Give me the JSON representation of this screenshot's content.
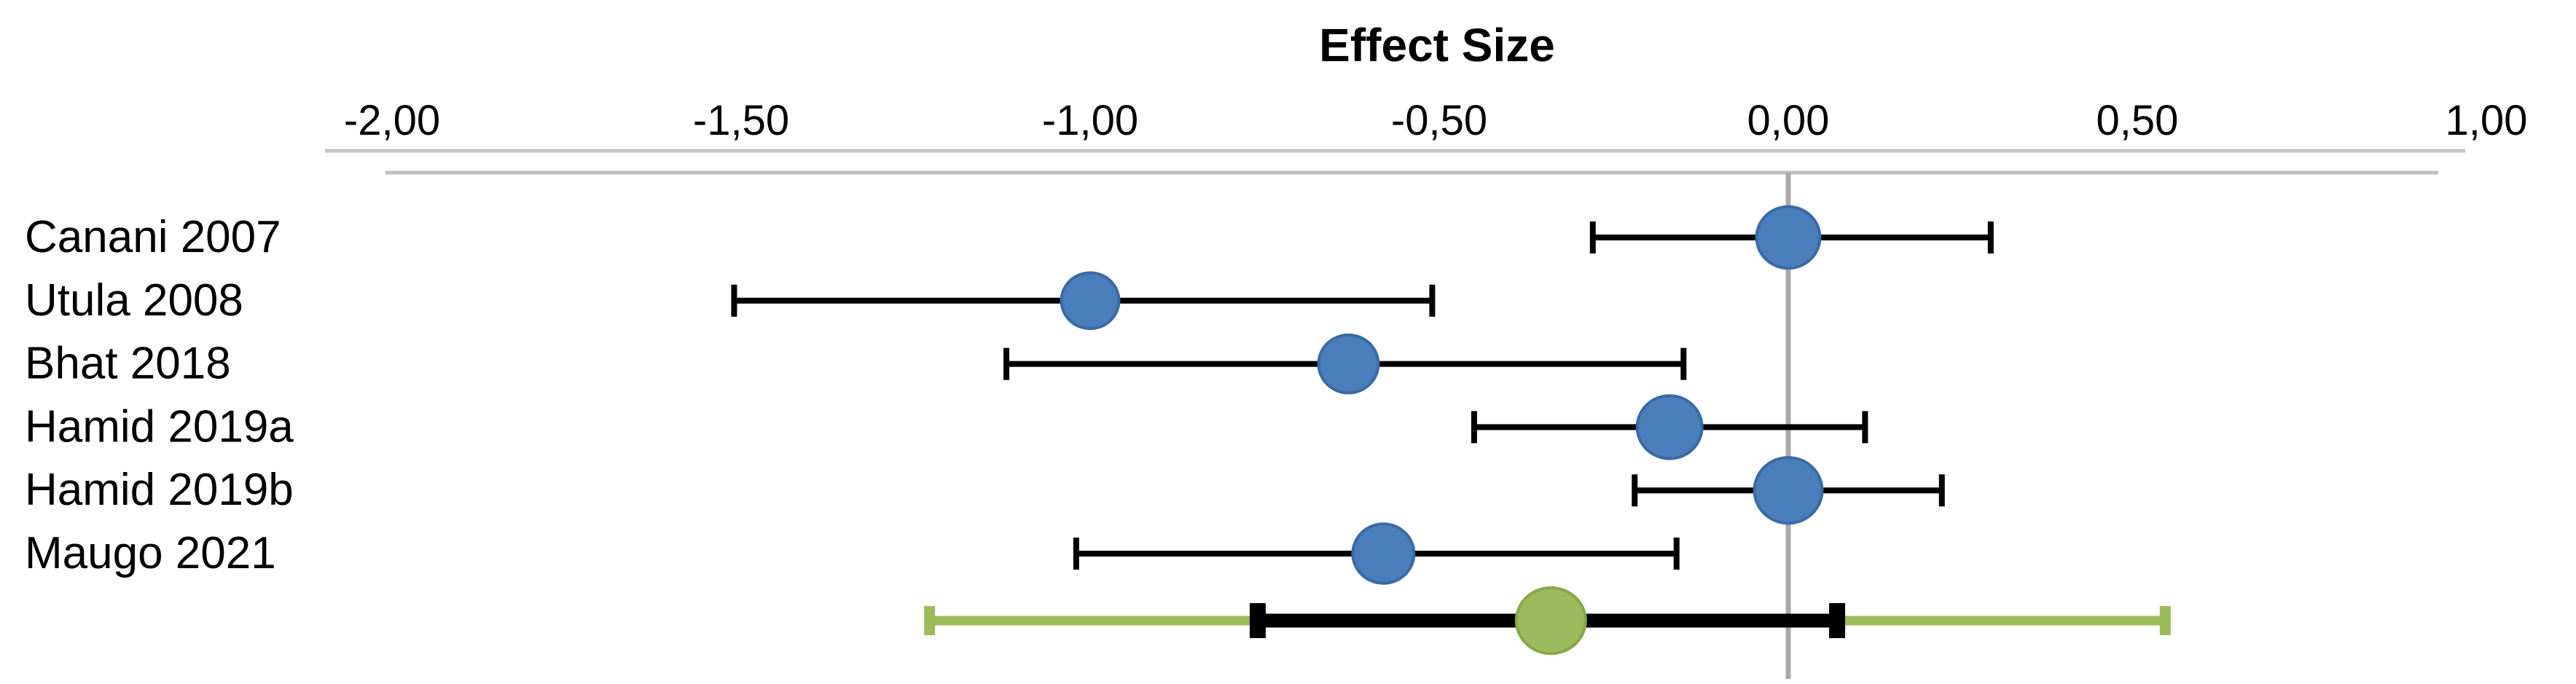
{
  "chart_data": {
    "type": "scatter",
    "subtype": "forest-plot",
    "title": "Effect Size",
    "x_axis": {
      "position": "top",
      "min": -2.0,
      "max": 1.0,
      "tick_labels": [
        "-2,00",
        "-1,50",
        "-1,00",
        "-0,50",
        "0,00",
        "0,50",
        "1,00"
      ],
      "tick_values": [
        -2.0,
        -1.5,
        -1.0,
        -0.5,
        0.0,
        0.5,
        1.0
      ],
      "decimal_separator": ",",
      "zero_reference_line": 0.0
    },
    "grid": "off",
    "legend_position": "none",
    "studies": [
      {
        "label": "Canani 2007",
        "effect": 0.0,
        "ci_low": -0.28,
        "ci_high": 0.29,
        "marker_px": 87
      },
      {
        "label": "Utula 2008",
        "effect": -1.0,
        "ci_low": -1.51,
        "ci_high": -0.51,
        "marker_px": 79
      },
      {
        "label": "Bhat 2018",
        "effect": -0.63,
        "ci_low": -1.12,
        "ci_high": -0.15,
        "marker_px": 82
      },
      {
        "label": "Hamid 2019a",
        "effect": -0.17,
        "ci_low": -0.45,
        "ci_high": 0.11,
        "marker_px": 89
      },
      {
        "label": "Hamid 2019b",
        "effect": 0.0,
        "ci_low": -0.22,
        "ci_high": 0.22,
        "marker_px": 93
      },
      {
        "label": "Maugo 2021",
        "effect": -0.58,
        "ci_low": -1.02,
        "ci_high": -0.16,
        "marker_px": 84
      }
    ],
    "summary": {
      "effect": -0.34,
      "ci_low": -0.76,
      "ci_high": 0.07,
      "pi_low": -1.23,
      "pi_high": 0.54,
      "marker_px": 95
    },
    "colors": {
      "study_marker_fill": "#4a7ebb",
      "study_marker_border": "#3a6aa6",
      "summary_marker_fill": "#9cbb5c",
      "summary_marker_border": "#87a84a",
      "prediction_interval": "#9bbb59",
      "ci_line": "#000000",
      "axis_line": "#c3c3c3",
      "sub_axis_line": "#bfbfbf",
      "zero_line": "#a9a9a9",
      "text": "#000000"
    }
  }
}
